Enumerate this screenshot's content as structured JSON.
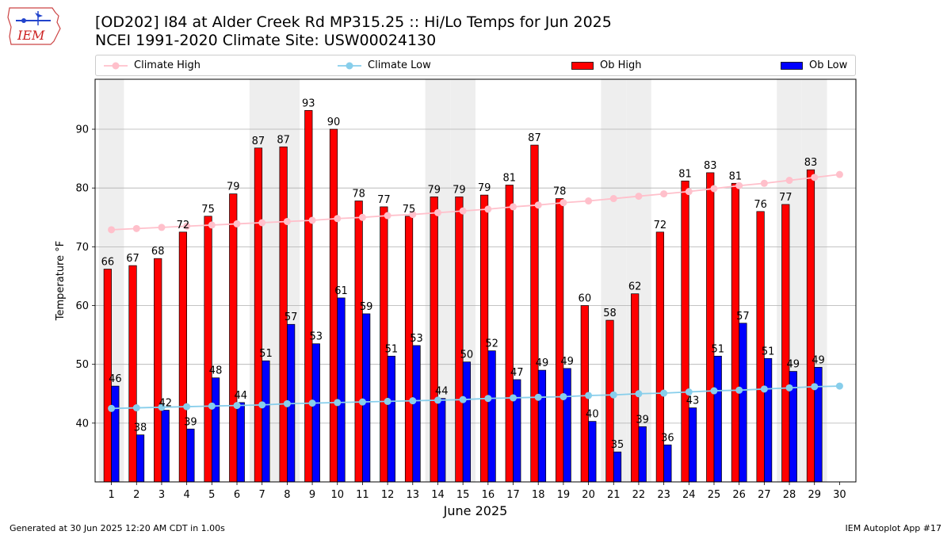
{
  "logo": {
    "text": "IEM"
  },
  "header": {
    "title_line1": "[OD202] I84 at Alder Creek Rd MP315.25  :: Hi/Lo Temps for Jun 2025",
    "title_line2": "NCEI 1991-2020 Climate Site: USW00024130"
  },
  "legend": {
    "climate_high": "Climate High",
    "climate_low": "Climate Low",
    "ob_high": "Ob High",
    "ob_low": "Ob Low"
  },
  "footer": {
    "generated": "Generated at 30 Jun 2025 12:20 AM CDT in 1.00s",
    "app": "IEM Autoplot App #17"
  },
  "colors": {
    "ob_high": "#ff0000",
    "ob_low": "#0000ff",
    "climate_high": "#ffc0cb",
    "climate_low": "#87ceeb",
    "weekend_shade": "#eeeeee",
    "grid": "#b0b0b0"
  },
  "chart_data": {
    "type": "bar",
    "title": "[OD202] I84 at Alder Creek Rd MP315.25  :: Hi/Lo Temps for Jun 2025",
    "subtitle": "NCEI 1991-2020 Climate Site: USW00024130",
    "xlabel": "June 2025",
    "ylabel": "Temperature °F",
    "categories": [
      "1",
      "2",
      "3",
      "4",
      "5",
      "6",
      "7",
      "8",
      "9",
      "10",
      "11",
      "12",
      "13",
      "14",
      "15",
      "16",
      "17",
      "18",
      "19",
      "20",
      "21",
      "22",
      "23",
      "24",
      "25",
      "26",
      "27",
      "28",
      "29",
      "30"
    ],
    "ylim": [
      30,
      98.5
    ],
    "yticks": [
      40,
      50,
      60,
      70,
      80,
      90
    ],
    "grid": true,
    "weekend_days": [
      1,
      7,
      8,
      14,
      15,
      21,
      22,
      28,
      29
    ],
    "series": [
      {
        "name": "Ob High",
        "kind": "bar",
        "values": [
          66.2,
          66.8,
          68,
          72.5,
          75.2,
          79,
          86.8,
          87,
          93.2,
          90,
          77.8,
          76.8,
          75.2,
          78.5,
          78.5,
          78.8,
          80.5,
          87.3,
          78.2,
          60,
          57.5,
          62,
          72.5,
          81.2,
          82.6,
          80.8,
          76,
          77.2,
          83.1,
          null
        ],
        "labels": [
          "66",
          "67",
          "68",
          "72",
          "75",
          "79",
          "87",
          "87",
          "93",
          "90",
          "78",
          "77",
          "75",
          "79",
          "79",
          "79",
          "81",
          "87",
          "78",
          "60",
          "58",
          "62",
          "72",
          "81",
          "83",
          "81",
          "76",
          "77",
          "83",
          ""
        ]
      },
      {
        "name": "Ob Low",
        "kind": "bar",
        "values": [
          46.3,
          38,
          42.2,
          39,
          47.7,
          43.5,
          50.6,
          56.8,
          53.5,
          61.3,
          58.6,
          51.4,
          53.2,
          44.2,
          50.4,
          52.3,
          47.4,
          49,
          49.3,
          40.3,
          35.1,
          39.4,
          36.3,
          42.6,
          51.4,
          57,
          51,
          48.8,
          49.5,
          null
        ],
        "labels": [
          "46",
          "38",
          "42",
          "39",
          "48",
          "44",
          "51",
          "57",
          "53",
          "61",
          "59",
          "51",
          "53",
          "44",
          "50",
          "52",
          "47",
          "49",
          "49",
          "40",
          "35",
          "39",
          "36",
          "43",
          "51",
          "57",
          "51",
          "49",
          "49",
          ""
        ]
      },
      {
        "name": "Climate High",
        "kind": "line",
        "values": [
          72.9,
          73.1,
          73.3,
          73.5,
          73.7,
          73.9,
          74.1,
          74.3,
          74.5,
          74.8,
          75.0,
          75.3,
          75.5,
          75.8,
          76.1,
          76.4,
          76.8,
          77.1,
          77.5,
          77.8,
          78.2,
          78.6,
          79.0,
          79.4,
          79.9,
          80.4,
          80.8,
          81.3,
          81.8,
          82.3
        ]
      },
      {
        "name": "Climate Low",
        "kind": "line",
        "values": [
          42.5,
          42.6,
          42.7,
          42.8,
          42.9,
          43.0,
          43.1,
          43.3,
          43.4,
          43.5,
          43.6,
          43.7,
          43.8,
          43.9,
          44.0,
          44.2,
          44.3,
          44.4,
          44.5,
          44.7,
          44.8,
          45.0,
          45.1,
          45.3,
          45.5,
          45.6,
          45.8,
          46.0,
          46.2,
          46.3
        ]
      }
    ]
  }
}
